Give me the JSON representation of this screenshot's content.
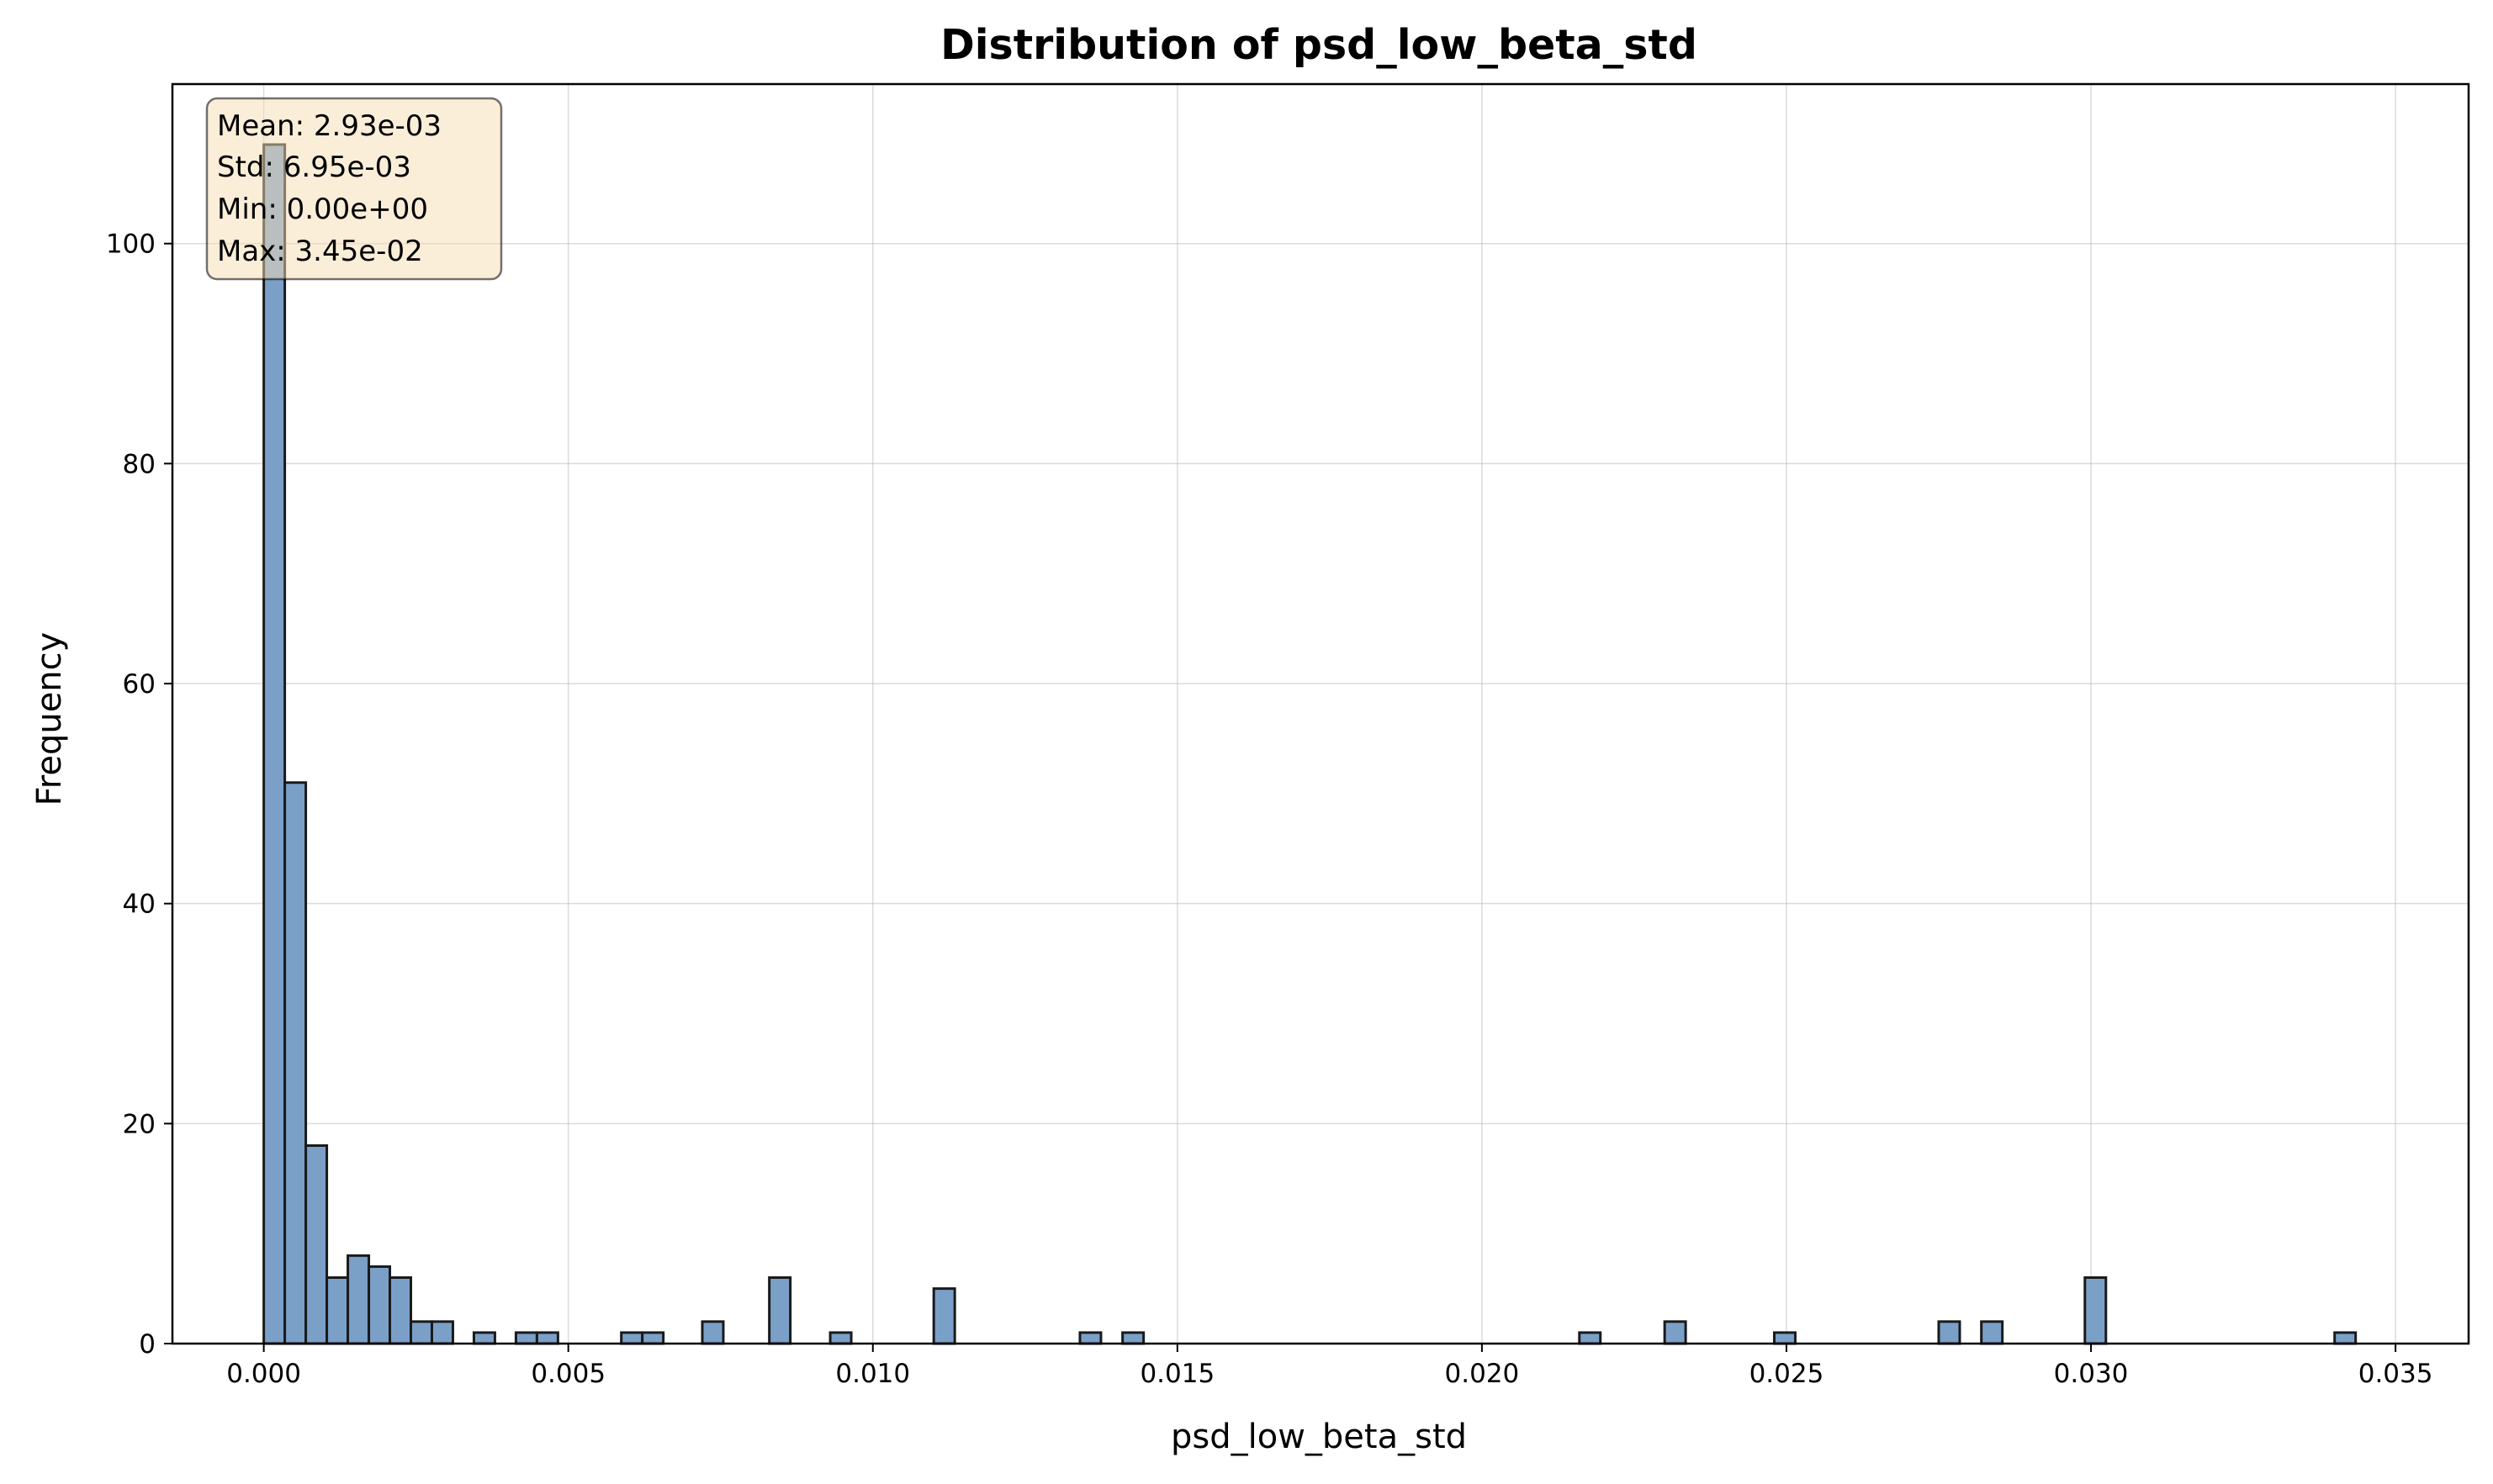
{
  "chart_data": {
    "type": "bar",
    "title": "Distribution of psd_low_beta_std",
    "xlabel": "psd_low_beta_std",
    "ylabel": "Frequency",
    "xlim": [
      -0.0015,
      0.0362
    ],
    "ylim": [
      0,
      114.5
    ],
    "xticks": [
      0.0,
      0.005,
      0.01,
      0.015,
      0.02,
      0.025,
      0.03,
      0.035
    ],
    "xtick_labels": [
      "0.000",
      "0.005",
      "0.010",
      "0.015",
      "0.020",
      "0.025",
      "0.030",
      "0.035"
    ],
    "yticks": [
      0,
      20,
      40,
      60,
      80,
      100
    ],
    "ytick_labels": [
      "0",
      "20",
      "40",
      "60",
      "80",
      "100"
    ],
    "grid": true,
    "bar_color": "#7aa0c8",
    "bin_width": 0.000345,
    "bins": [
      {
        "x": 0.0,
        "count": 109
      },
      {
        "x": 0.000345,
        "count": 51
      },
      {
        "x": 0.00069,
        "count": 18
      },
      {
        "x": 0.001035,
        "count": 6
      },
      {
        "x": 0.00138,
        "count": 8
      },
      {
        "x": 0.001725,
        "count": 7
      },
      {
        "x": 0.00207,
        "count": 6
      },
      {
        "x": 0.002415,
        "count": 2
      },
      {
        "x": 0.00276,
        "count": 2
      },
      {
        "x": 0.00345,
        "count": 1
      },
      {
        "x": 0.00414,
        "count": 1
      },
      {
        "x": 0.004485,
        "count": 1
      },
      {
        "x": 0.00587,
        "count": 1
      },
      {
        "x": 0.006215,
        "count": 1
      },
      {
        "x": 0.0072,
        "count": 2
      },
      {
        "x": 0.0083,
        "count": 6
      },
      {
        "x": 0.0093,
        "count": 1
      },
      {
        "x": 0.011,
        "count": 5
      },
      {
        "x": 0.0134,
        "count": 1
      },
      {
        "x": 0.0141,
        "count": 1
      },
      {
        "x": 0.0216,
        "count": 1
      },
      {
        "x": 0.023,
        "count": 2
      },
      {
        "x": 0.0248,
        "count": 1
      },
      {
        "x": 0.0275,
        "count": 2
      },
      {
        "x": 0.0282,
        "count": 2
      },
      {
        "x": 0.0299,
        "count": 6
      },
      {
        "x": 0.034,
        "count": 1
      }
    ],
    "annotation": {
      "placement": "top-left",
      "lines": [
        "Mean: 2.93e-03",
        "Std: 6.95e-03",
        "Min: 0.00e+00",
        "Max: 3.45e-02"
      ],
      "background": "#f5deb3"
    }
  }
}
